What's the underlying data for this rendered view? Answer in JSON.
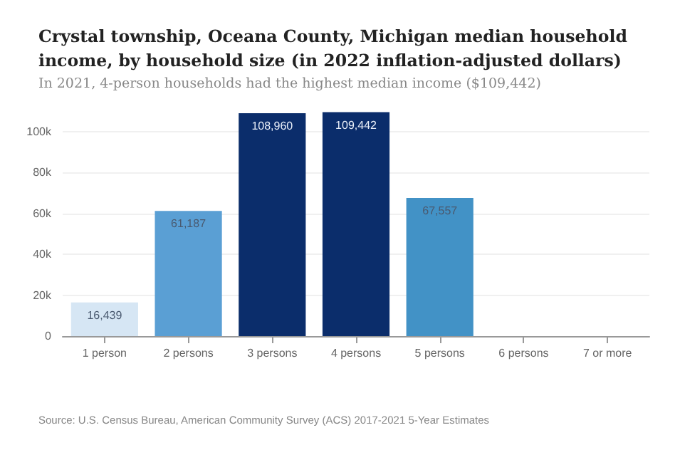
{
  "chart_data": {
    "type": "bar",
    "title": "Crystal township, Oceana County, Michigan median household income, by household size (in 2022 inflation-adjusted dollars)",
    "subtitle": "In 2021, 4-person households had the highest median income ($109,442)",
    "categories": [
      "1 person",
      "2 persons",
      "3 persons",
      "4 persons",
      "5 persons",
      "6 persons",
      "7 or more"
    ],
    "values": [
      16439,
      61187,
      108960,
      109442,
      67557,
      null,
      null
    ],
    "colors": [
      "#d6e6f4",
      "#5a9fd4",
      "#0b2d6b",
      "#0b2d6b",
      "#4292c6",
      "#4292c6",
      "#4292c6"
    ],
    "value_labels": [
      "16,439",
      "61,187",
      "108,960",
      "109,442",
      "67,557",
      null,
      null
    ],
    "ylim": [
      0,
      110000
    ],
    "yticks": [
      {
        "value": 0,
        "label": "0"
      },
      {
        "value": 20000,
        "label": "20k"
      },
      {
        "value": 40000,
        "label": "40k"
      },
      {
        "value": 60000,
        "label": "60k"
      },
      {
        "value": 80000,
        "label": "80k"
      },
      {
        "value": 100000,
        "label": "100k"
      }
    ],
    "grid": "y",
    "annotations": [
      "Source: U.S. Census Bureau, American Community Survey (ACS) 2017-2021 5-Year Estimates"
    ]
  }
}
